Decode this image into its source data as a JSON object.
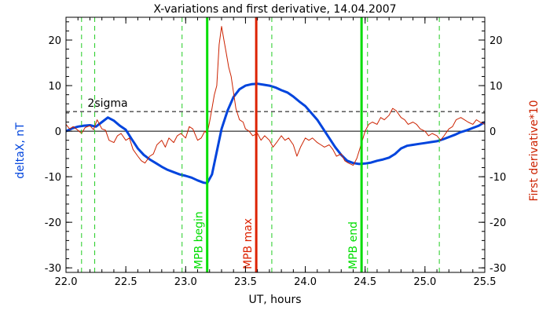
{
  "chart_data": {
    "type": "line",
    "title": "X-variations and first derivative, 14.04.2007",
    "xlabel": "UT, hours",
    "ylabel_left": "deltaX, nT",
    "ylabel_right": "First derivative*10",
    "xlim": [
      22.0,
      25.5
    ],
    "ylim": [
      -31,
      25
    ],
    "x_ticks": [
      "22.0",
      "22.5",
      "23.0",
      "23.5",
      "24.0",
      "24.5",
      "25.0",
      "25.5"
    ],
    "y_ticks": [
      "-30",
      "-20",
      "-10",
      "0",
      "10",
      "20"
    ],
    "colors": {
      "deltaX": "#0044dd",
      "derivative": "#cc2200",
      "mpb_lines": "#00dd00",
      "dashed_green": "#22cc22",
      "mpb_max": "#dd2200",
      "sigma": "#000000"
    },
    "threshold": {
      "label": "2sigma",
      "value": 4.3
    },
    "zero_line": 0,
    "series": [
      {
        "name": "deltaX",
        "axis": "left",
        "x": [
          22.0,
          22.05,
          22.1,
          22.15,
          22.2,
          22.25,
          22.3,
          22.35,
          22.4,
          22.45,
          22.5,
          22.55,
          22.6,
          22.65,
          22.7,
          22.75,
          22.8,
          22.85,
          22.9,
          22.95,
          23.0,
          23.05,
          23.1,
          23.15,
          23.18,
          23.22,
          23.26,
          23.3,
          23.35,
          23.4,
          23.45,
          23.5,
          23.55,
          23.6,
          23.65,
          23.7,
          23.75,
          23.8,
          23.85,
          23.9,
          23.95,
          24.0,
          24.05,
          24.1,
          24.15,
          24.2,
          24.25,
          24.3,
          24.35,
          24.4,
          24.45,
          24.5,
          24.55,
          24.6,
          24.65,
          24.7,
          24.75,
          24.8,
          24.85,
          24.9,
          24.95,
          25.0,
          25.05,
          25.1,
          25.15,
          25.2,
          25.25,
          25.3,
          25.35,
          25.4,
          25.45,
          25.5
        ],
        "y": [
          0.0,
          0.6,
          1.0,
          1.2,
          1.3,
          1.0,
          2.0,
          3.0,
          2.3,
          1.2,
          0.3,
          -1.8,
          -3.8,
          -5.2,
          -6.2,
          -7.0,
          -7.8,
          -8.5,
          -9.0,
          -9.5,
          -9.8,
          -10.2,
          -10.8,
          -11.3,
          -11.4,
          -9.5,
          -4.5,
          0.5,
          4.5,
          7.5,
          9.2,
          10.0,
          10.3,
          10.4,
          10.2,
          10.0,
          9.6,
          9.0,
          8.5,
          7.6,
          6.5,
          5.5,
          4.0,
          2.5,
          0.5,
          -1.5,
          -3.5,
          -5.2,
          -6.5,
          -7.0,
          -7.2,
          -7.1,
          -6.9,
          -6.5,
          -6.2,
          -5.8,
          -5.0,
          -3.8,
          -3.2,
          -3.0,
          -2.8,
          -2.6,
          -2.4,
          -2.2,
          -1.8,
          -1.3,
          -0.8,
          -0.2,
          0.2,
          0.7,
          1.2,
          2.0
        ]
      },
      {
        "name": "First derivative*10",
        "axis": "right",
        "x": [
          22.0,
          22.03,
          22.06,
          22.1,
          22.13,
          22.16,
          22.2,
          22.23,
          22.26,
          22.3,
          22.33,
          22.36,
          22.4,
          22.43,
          22.46,
          22.5,
          22.53,
          22.56,
          22.6,
          22.63,
          22.66,
          22.7,
          22.73,
          22.76,
          22.8,
          22.83,
          22.86,
          22.9,
          22.93,
          22.96,
          23.0,
          23.03,
          23.06,
          23.1,
          23.13,
          23.16,
          23.18,
          23.2,
          23.22,
          23.24,
          23.26,
          23.28,
          23.3,
          23.32,
          23.34,
          23.36,
          23.38,
          23.4,
          23.42,
          23.45,
          23.48,
          23.5,
          23.53,
          23.56,
          23.6,
          23.63,
          23.66,
          23.7,
          23.73,
          23.76,
          23.8,
          23.83,
          23.86,
          23.9,
          23.93,
          23.96,
          24.0,
          24.03,
          24.06,
          24.1,
          24.13,
          24.16,
          24.2,
          24.23,
          24.26,
          24.3,
          24.33,
          24.36,
          24.4,
          24.43,
          24.46,
          24.5,
          24.53,
          24.56,
          24.6,
          24.63,
          24.66,
          24.7,
          24.73,
          24.76,
          24.8,
          24.83,
          24.86,
          24.9,
          24.93,
          24.96,
          25.0,
          25.03,
          25.06,
          25.1,
          25.13,
          25.16,
          25.2,
          25.23,
          25.26,
          25.3,
          25.33,
          25.36,
          25.4,
          25.43,
          25.46,
          25.5
        ],
        "y": [
          1.5,
          0.5,
          1.0,
          0.2,
          -0.5,
          0.8,
          1.2,
          0.3,
          2.5,
          0.5,
          0.2,
          -2.0,
          -2.5,
          -1.0,
          -0.5,
          -2.0,
          -1.5,
          -4.0,
          -5.5,
          -6.5,
          -7.0,
          -5.5,
          -5.0,
          -3.0,
          -2.0,
          -3.5,
          -1.5,
          -2.5,
          -1.0,
          -0.5,
          -1.5,
          1.0,
          0.5,
          -2.0,
          -1.5,
          0.0,
          -0.5,
          2.0,
          5.0,
          8.0,
          10.0,
          19.0,
          23.0,
          20.0,
          17.0,
          14.0,
          12.0,
          8.5,
          5.0,
          2.5,
          2.0,
          0.5,
          0.0,
          -1.0,
          -0.5,
          -2.0,
          -1.0,
          -2.0,
          -3.5,
          -2.5,
          -1.0,
          -2.0,
          -1.5,
          -3.0,
          -5.5,
          -3.5,
          -1.5,
          -2.0,
          -1.5,
          -2.5,
          -3.0,
          -3.5,
          -3.0,
          -4.0,
          -5.5,
          -5.0,
          -6.5,
          -7.0,
          -7.5,
          -6.0,
          -3.5,
          0.0,
          1.5,
          2.0,
          1.5,
          3.0,
          2.5,
          3.5,
          5.0,
          4.5,
          3.0,
          2.5,
          1.5,
          2.0,
          1.5,
          0.5,
          0.0,
          -1.0,
          -0.5,
          -1.0,
          -2.0,
          -1.0,
          0.5,
          1.0,
          2.5,
          3.0,
          2.5,
          2.0,
          1.5,
          2.5,
          2.0,
          1.5
        ]
      }
    ],
    "vlines": [
      {
        "x": 23.18,
        "label": "MPB begin",
        "style": "solid",
        "color": "#00dd00"
      },
      {
        "x": 23.59,
        "label": "MPB max",
        "style": "solid",
        "color": "#dd2200"
      },
      {
        "x": 24.47,
        "label": "MPB end",
        "style": "solid",
        "color": "#00dd00"
      },
      {
        "x": 22.13,
        "label": "",
        "style": "dashed",
        "color": "#22cc22"
      },
      {
        "x": 22.24,
        "label": "",
        "style": "dashed",
        "color": "#22cc22"
      },
      {
        "x": 22.97,
        "label": "",
        "style": "dashed",
        "color": "#22cc22"
      },
      {
        "x": 23.72,
        "label": "",
        "style": "dashed",
        "color": "#22cc22"
      },
      {
        "x": 24.52,
        "label": "",
        "style": "dashed",
        "color": "#22cc22"
      },
      {
        "x": 25.12,
        "label": "",
        "style": "dashed",
        "color": "#22cc22"
      }
    ]
  }
}
